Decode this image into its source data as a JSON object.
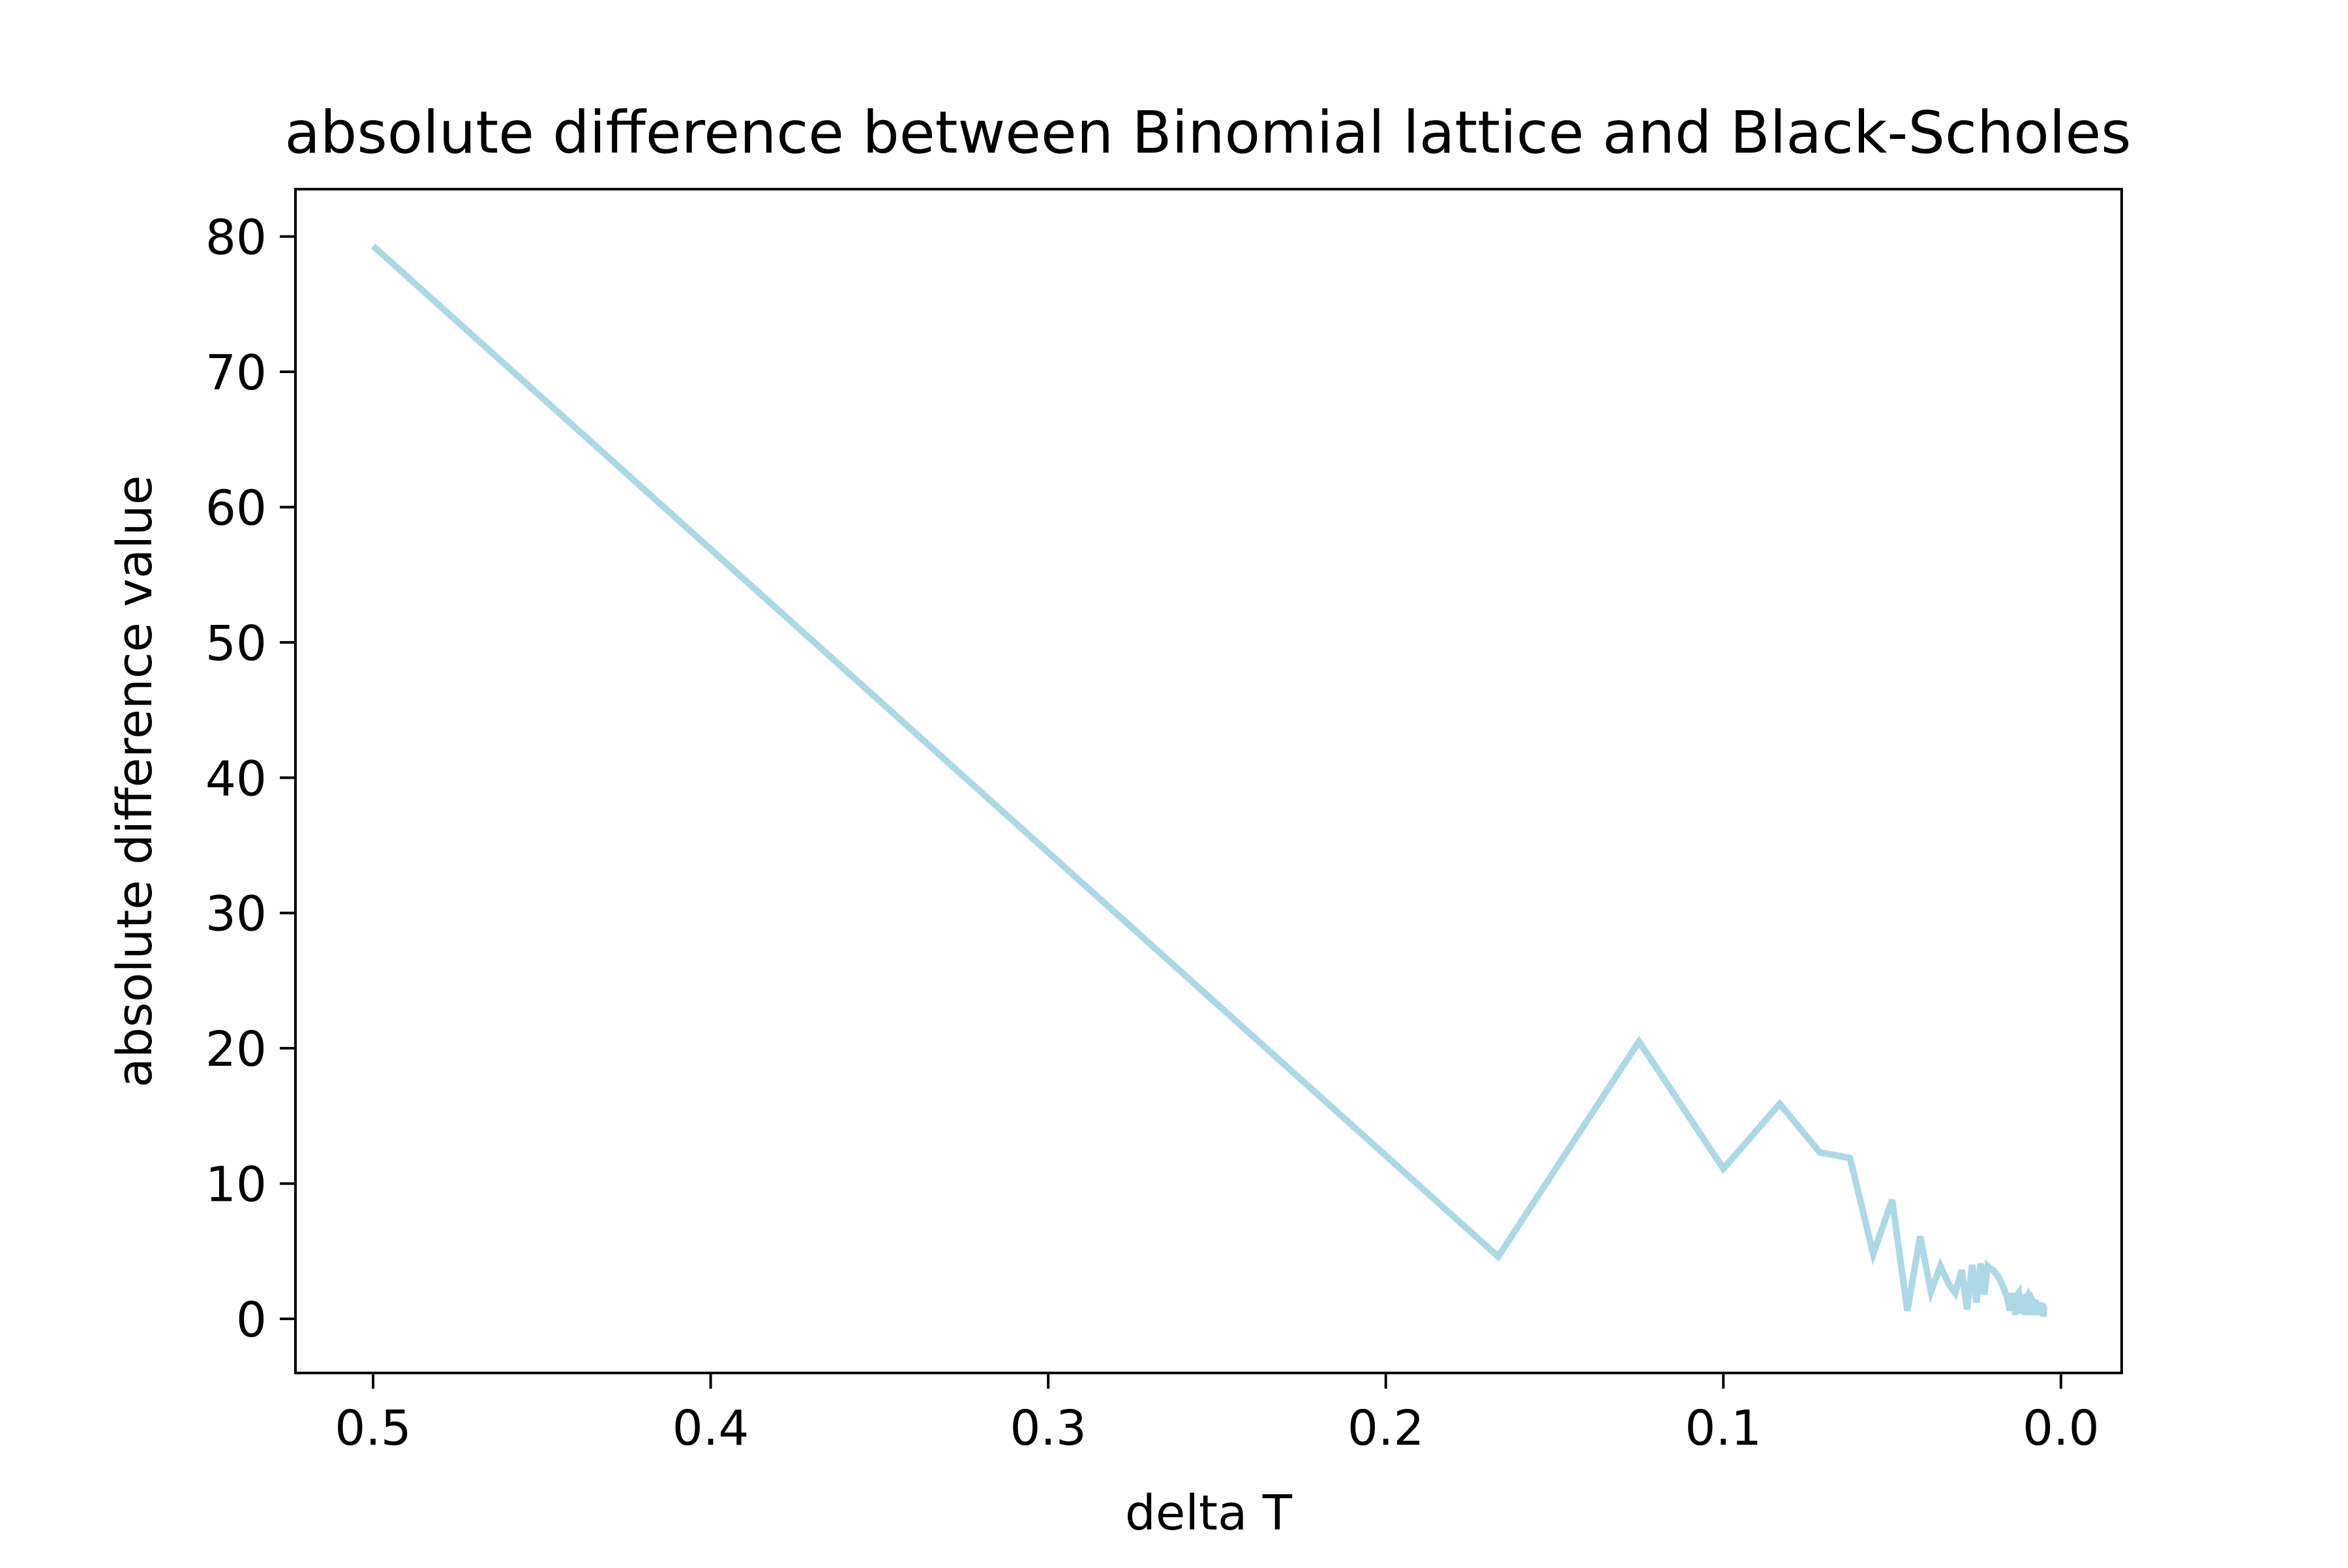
{
  "chart_data": {
    "type": "line",
    "title": "absolute difference between Binomial lattice and Black-Scholes",
    "xlabel": "delta T",
    "ylabel": "absolute difference value",
    "xlim": [
      0.523,
      -0.018
    ],
    "ylim": [
      -4,
      83.5
    ],
    "x_inverted": true,
    "grid": false,
    "legend": "none",
    "xticks": [
      0.5,
      0.4,
      0.3,
      0.2,
      0.1,
      0.0
    ],
    "xtick_labels": [
      "0.5",
      "0.4",
      "0.3",
      "0.2",
      "0.1",
      "0.0"
    ],
    "yticks": [
      0,
      10,
      20,
      30,
      40,
      50,
      60,
      70,
      80
    ],
    "ytick_labels": [
      "0",
      "10",
      "20",
      "30",
      "40",
      "50",
      "60",
      "70",
      "80"
    ],
    "series": [
      {
        "color": "#add8e6",
        "x": [
          0.5,
          0.1667,
          0.125,
          0.1,
          0.0833,
          0.0714,
          0.0625,
          0.0556,
          0.05,
          0.0455,
          0.0417,
          0.0385,
          0.0357,
          0.0333,
          0.0313,
          0.0294,
          0.0278,
          0.0263,
          0.025,
          0.0238,
          0.0227,
          0.0217,
          0.0208,
          0.02,
          0.0192,
          0.0185,
          0.0179,
          0.0172,
          0.0167,
          0.0161,
          0.0156,
          0.0152,
          0.0147,
          0.0143,
          0.0139,
          0.0135,
          0.0132,
          0.0128,
          0.0125,
          0.0122,
          0.0119,
          0.0116,
          0.0114,
          0.0111,
          0.0109,
          0.0106,
          0.0104,
          0.0102,
          0.01,
          0.0098,
          0.0096,
          0.0094,
          0.0093,
          0.0091,
          0.0089,
          0.0088,
          0.0086,
          0.0085,
          0.0083,
          0.0082,
          0.0081,
          0.0079,
          0.0078,
          0.0077,
          0.0076,
          0.0075,
          0.0074,
          0.0072,
          0.0071,
          0.007,
          0.0069,
          0.0068,
          0.0068,
          0.0067,
          0.0066,
          0.0065,
          0.0064,
          0.0063,
          0.0063,
          0.0062,
          0.0061,
          0.006,
          0.006,
          0.0059,
          0.0058,
          0.0058,
          0.0057,
          0.0056,
          0.0056,
          0.0055,
          0.0054,
          0.0054,
          0.0053,
          0.0053,
          0.0052,
          0.0052,
          0.0051,
          0.0051,
          0.005
        ],
        "y": [
          79.3,
          4.6,
          20.5,
          11.1,
          15.9,
          12.3,
          11.9,
          4.8,
          8.8,
          0.6,
          6.1,
          2.0,
          3.9,
          2.6,
          1.9,
          3.6,
          0.7,
          4.0,
          1.2,
          4.1,
          1.8,
          3.9,
          3.7,
          3.6,
          3.3,
          3.1,
          2.8,
          2.4,
          2.1,
          1.7,
          1.2,
          0.6,
          1.4,
          1.9,
          1.0,
          0.3,
          1.2,
          1.8,
          1.9,
          0.4,
          1.1,
          1.6,
          1.8,
          1.5,
          0.9,
          0.3,
          0.8,
          1.3,
          1.6,
          1.7,
          1.5,
          1.1,
          0.6,
          0.3,
          0.6,
          1.0,
          1.3,
          1.4,
          1.3,
          1.0,
          0.6,
          0.3,
          0.5,
          0.8,
          1.1,
          1.2,
          1.2,
          1.0,
          0.7,
          0.4,
          0.3,
          0.6,
          0.9,
          1.0,
          1.1,
          1.0,
          0.8,
          0.5,
          0.3,
          0.4,
          0.7,
          0.9,
          1.0,
          1.0,
          0.9,
          0.7,
          0.4,
          0.3,
          0.5,
          0.7,
          0.8,
          0.9,
          0.9,
          0.8,
          0.6,
          0.4,
          0.4,
          0.7,
          0.9
        ]
      }
    ]
  }
}
